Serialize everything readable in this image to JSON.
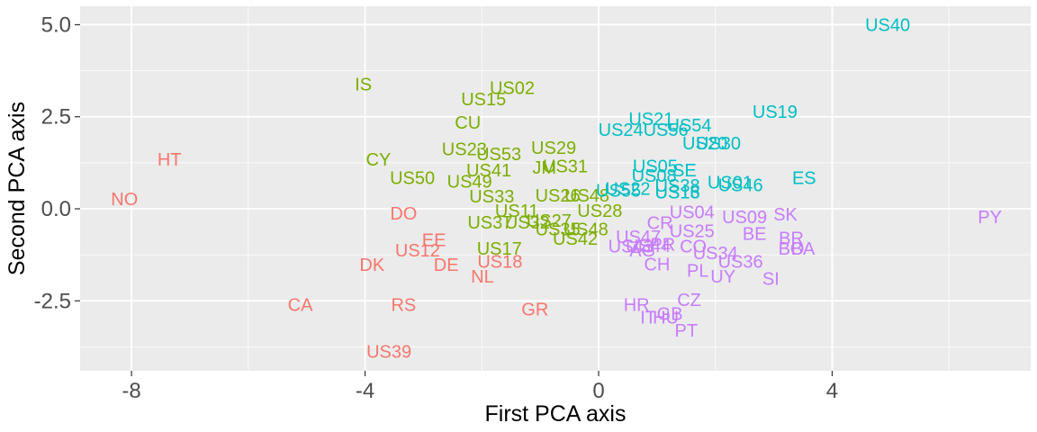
{
  "chart_data": {
    "type": "scatter",
    "xlabel": "First PCA axis",
    "ylabel": "Second PCA axis",
    "xlim": [
      -8.88,
      7.4
    ],
    "ylim": [
      -4.4,
      5.5
    ],
    "x_ticks": [
      -8,
      -4,
      0,
      4
    ],
    "y_ticks": [
      -2.5,
      0.0,
      2.5,
      5.0
    ],
    "x_tick_labels": [
      "-8",
      "-4",
      "0",
      "4"
    ],
    "y_tick_labels": [
      "-2.5",
      "0.0",
      "2.5",
      "5.0"
    ],
    "grid": true,
    "legend": "none",
    "colors": [
      "#F8766D",
      "#7CAE00",
      "#00BFC4",
      "#C77CFF"
    ],
    "points": [
      {
        "label": "NO",
        "x": -8.12,
        "y": 0.27,
        "group": 0
      },
      {
        "label": "HT",
        "x": -7.35,
        "y": 1.35,
        "group": 0
      },
      {
        "label": "CA",
        "x": -5.11,
        "y": -2.6,
        "group": 0
      },
      {
        "label": "DO",
        "x": -3.34,
        "y": -0.12,
        "group": 0
      },
      {
        "label": "RS",
        "x": -3.34,
        "y": -2.6,
        "group": 0
      },
      {
        "label": "US39",
        "x": -3.59,
        "y": -3.87,
        "group": 0
      },
      {
        "label": "EE",
        "x": -2.82,
        "y": -0.84,
        "group": 0
      },
      {
        "label": "US12",
        "x": -3.1,
        "y": -1.12,
        "group": 0
      },
      {
        "label": "DK",
        "x": -3.88,
        "y": -1.52,
        "group": 0
      },
      {
        "label": "DE",
        "x": -2.61,
        "y": -1.52,
        "group": 0
      },
      {
        "label": "US18",
        "x": -1.69,
        "y": -1.43,
        "group": 0
      },
      {
        "label": "NL",
        "x": -1.99,
        "y": -1.83,
        "group": 0
      },
      {
        "label": "GR",
        "x": -1.09,
        "y": -2.73,
        "group": 0
      },
      {
        "label": "IS",
        "x": -4.03,
        "y": 3.39,
        "group": 1
      },
      {
        "label": "US02",
        "x": -1.48,
        "y": 3.29,
        "group": 1
      },
      {
        "label": "US15",
        "x": -1.97,
        "y": 2.98,
        "group": 1
      },
      {
        "label": "CU",
        "x": -2.24,
        "y": 2.35,
        "group": 1
      },
      {
        "label": "US23",
        "x": -2.3,
        "y": 1.62,
        "group": 1
      },
      {
        "label": "US53",
        "x": -1.71,
        "y": 1.49,
        "group": 1
      },
      {
        "label": "US29",
        "x": -0.77,
        "y": 1.66,
        "group": 1
      },
      {
        "label": "CY",
        "x": -3.77,
        "y": 1.35,
        "group": 1
      },
      {
        "label": "US31",
        "x": -0.57,
        "y": 1.16,
        "group": 1
      },
      {
        "label": "JM",
        "x": -0.93,
        "y": 1.12,
        "group": 1
      },
      {
        "label": "US41",
        "x": -1.88,
        "y": 1.05,
        "group": 1
      },
      {
        "label": "US50",
        "x": -3.19,
        "y": 0.84,
        "group": 1
      },
      {
        "label": "US49",
        "x": -2.21,
        "y": 0.74,
        "group": 1
      },
      {
        "label": "US33",
        "x": -1.83,
        "y": 0.34,
        "group": 1
      },
      {
        "label": "US26",
        "x": -0.7,
        "y": 0.37,
        "group": 1
      },
      {
        "label": "US48",
        "x": -0.2,
        "y": 0.37,
        "group": 1
      },
      {
        "label": "US11",
        "x": -1.4,
        "y": -0.05,
        "group": 1
      },
      {
        "label": "US28",
        "x": 0.02,
        "y": -0.05,
        "group": 1
      },
      {
        "label": "US37",
        "x": -1.86,
        "y": -0.37,
        "group": 1
      },
      {
        "label": "US32",
        "x": -1.22,
        "y": -0.37,
        "group": 1
      },
      {
        "label": "US27",
        "x": -0.85,
        "y": -0.32,
        "group": 1
      },
      {
        "label": "US35",
        "x": -0.7,
        "y": -0.55,
        "group": 1
      },
      {
        "label": "US48",
        "x": -0.22,
        "y": -0.55,
        "group": 1
      },
      {
        "label": "US42",
        "x": -0.4,
        "y": -0.81,
        "group": 1
      },
      {
        "label": "US17",
        "x": -1.7,
        "y": -1.07,
        "group": 1
      },
      {
        "label": "US40",
        "x": 4.95,
        "y": 5.0,
        "group": 2
      },
      {
        "label": "US19",
        "x": 3.02,
        "y": 2.64,
        "group": 2
      },
      {
        "label": "US21",
        "x": 0.9,
        "y": 2.44,
        "group": 2
      },
      {
        "label": "US54",
        "x": 1.55,
        "y": 2.27,
        "group": 2
      },
      {
        "label": "US24",
        "x": 0.38,
        "y": 2.15,
        "group": 2
      },
      {
        "label": "US56",
        "x": 1.15,
        "y": 2.15,
        "group": 2
      },
      {
        "label": "US30",
        "x": 2.05,
        "y": 1.78,
        "group": 2
      },
      {
        "label": "US20",
        "x": 1.82,
        "y": 1.78,
        "group": 2
      },
      {
        "label": "US05",
        "x": 0.97,
        "y": 1.16,
        "group": 2
      },
      {
        "label": "SE",
        "x": 1.47,
        "y": 1.05,
        "group": 2
      },
      {
        "label": "US08",
        "x": 0.95,
        "y": 0.9,
        "group": 2
      },
      {
        "label": "ES",
        "x": 3.52,
        "y": 0.84,
        "group": 2
      },
      {
        "label": "US01",
        "x": 2.25,
        "y": 0.72,
        "group": 2
      },
      {
        "label": "US46",
        "x": 2.43,
        "y": 0.65,
        "group": 2
      },
      {
        "label": "US38",
        "x": 1.35,
        "y": 0.63,
        "group": 2
      },
      {
        "label": "US22",
        "x": 0.5,
        "y": 0.55,
        "group": 2
      },
      {
        "label": "US13",
        "x": 1.35,
        "y": 0.45,
        "group": 2
      },
      {
        "label": "US16",
        "x": 1.35,
        "y": 0.45,
        "group": 2
      },
      {
        "label": "US55",
        "x": 0.34,
        "y": 0.5,
        "group": 2
      },
      {
        "label": "US04",
        "x": 1.6,
        "y": -0.08,
        "group": 3
      },
      {
        "label": "US09",
        "x": 2.5,
        "y": -0.22,
        "group": 3
      },
      {
        "label": "SK",
        "x": 3.2,
        "y": -0.15,
        "group": 3
      },
      {
        "label": "PY",
        "x": 6.7,
        "y": -0.22,
        "group": 3
      },
      {
        "label": "CR",
        "x": 1.05,
        "y": -0.38,
        "group": 3
      },
      {
        "label": "US25",
        "x": 1.6,
        "y": -0.6,
        "group": 3
      },
      {
        "label": "BE",
        "x": 2.67,
        "y": -0.67,
        "group": 3
      },
      {
        "label": "US47",
        "x": 0.68,
        "y": -0.76,
        "group": 3
      },
      {
        "label": "BR",
        "x": 3.3,
        "y": -0.8,
        "group": 3
      },
      {
        "label": "US43",
        "x": 0.55,
        "y": -1.02,
        "group": 3
      },
      {
        "label": "US44",
        "x": 0.85,
        "y": -1.0,
        "group": 3
      },
      {
        "label": "PR",
        "x": 1.1,
        "y": -0.97,
        "group": 3
      },
      {
        "label": "CO",
        "x": 1.62,
        "y": -1.02,
        "group": 3
      },
      {
        "label": "BO",
        "x": 3.3,
        "y": -1.07,
        "group": 3
      },
      {
        "label": "BA",
        "x": 3.5,
        "y": -1.07,
        "group": 3
      },
      {
        "label": "AG",
        "x": 0.75,
        "y": -1.12,
        "group": 3
      },
      {
        "label": "US34",
        "x": 2.0,
        "y": -1.2,
        "group": 3
      },
      {
        "label": "US36",
        "x": 2.43,
        "y": -1.43,
        "group": 3
      },
      {
        "label": "CH",
        "x": 1.0,
        "y": -1.5,
        "group": 3
      },
      {
        "label": "PL",
        "x": 1.7,
        "y": -1.67,
        "group": 3
      },
      {
        "label": "UY",
        "x": 2.13,
        "y": -1.83,
        "group": 3
      },
      {
        "label": "SI",
        "x": 2.95,
        "y": -1.9,
        "group": 3
      },
      {
        "label": "CZ",
        "x": 1.55,
        "y": -2.47,
        "group": 3
      },
      {
        "label": "HR",
        "x": 0.65,
        "y": -2.6,
        "group": 3
      },
      {
        "label": "GB",
        "x": 1.22,
        "y": -2.85,
        "group": 3
      },
      {
        "label": "IT",
        "x": 0.85,
        "y": -2.95,
        "group": 3
      },
      {
        "label": "HU",
        "x": 1.15,
        "y": -2.95,
        "group": 3
      },
      {
        "label": "PT",
        "x": 1.5,
        "y": -3.3,
        "group": 3
      }
    ]
  }
}
